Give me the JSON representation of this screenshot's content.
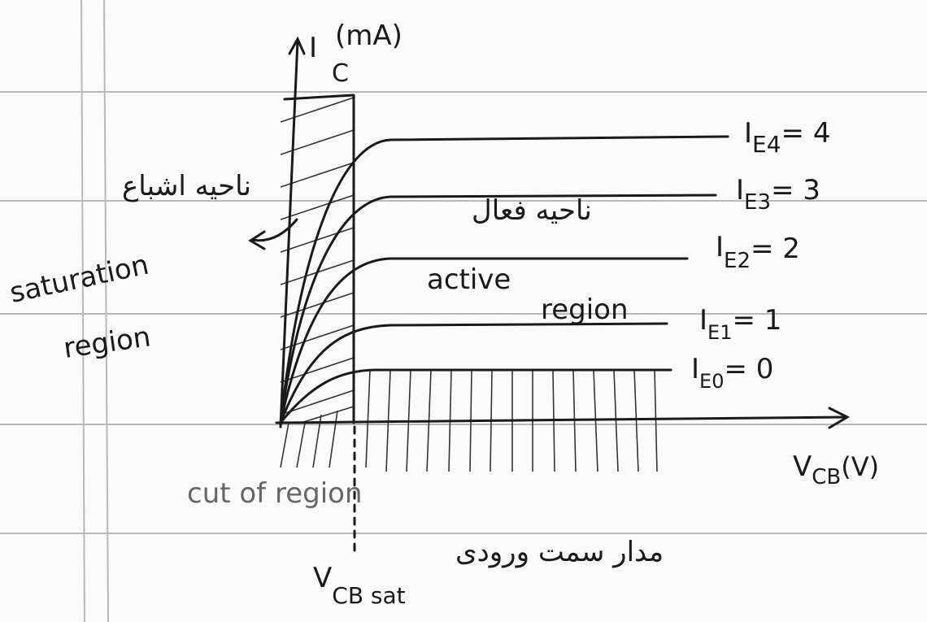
{
  "y_axis": {
    "symbol": "I",
    "subscript": "C",
    "unit": "(mA)"
  },
  "x_axis": {
    "symbol": "V",
    "subscript": "CB",
    "unit": "(V)"
  },
  "curves": [
    {
      "symbol": "I",
      "subscript": "E4",
      "value": "= 4"
    },
    {
      "symbol": "I",
      "subscript": "E3",
      "value": "= 3"
    },
    {
      "symbol": "I",
      "subscript": "E2",
      "value": "= 2"
    },
    {
      "symbol": "I",
      "subscript": "E1",
      "value": "= 1"
    },
    {
      "symbol": "I",
      "subscript": "E0",
      "value": "= 0"
    }
  ],
  "regions": {
    "saturation": {
      "persian": "ناحیه اشباع",
      "english_1": "saturation",
      "english_2": "region"
    },
    "active": {
      "persian": "ناحیه فعال",
      "english_1": "active",
      "english_2": "region"
    },
    "cutoff": {
      "english": "cut of region",
      "persian": "مدار سمت ورودی"
    }
  },
  "vcb_sat": {
    "symbol": "V",
    "subscript": "CB sat"
  }
}
